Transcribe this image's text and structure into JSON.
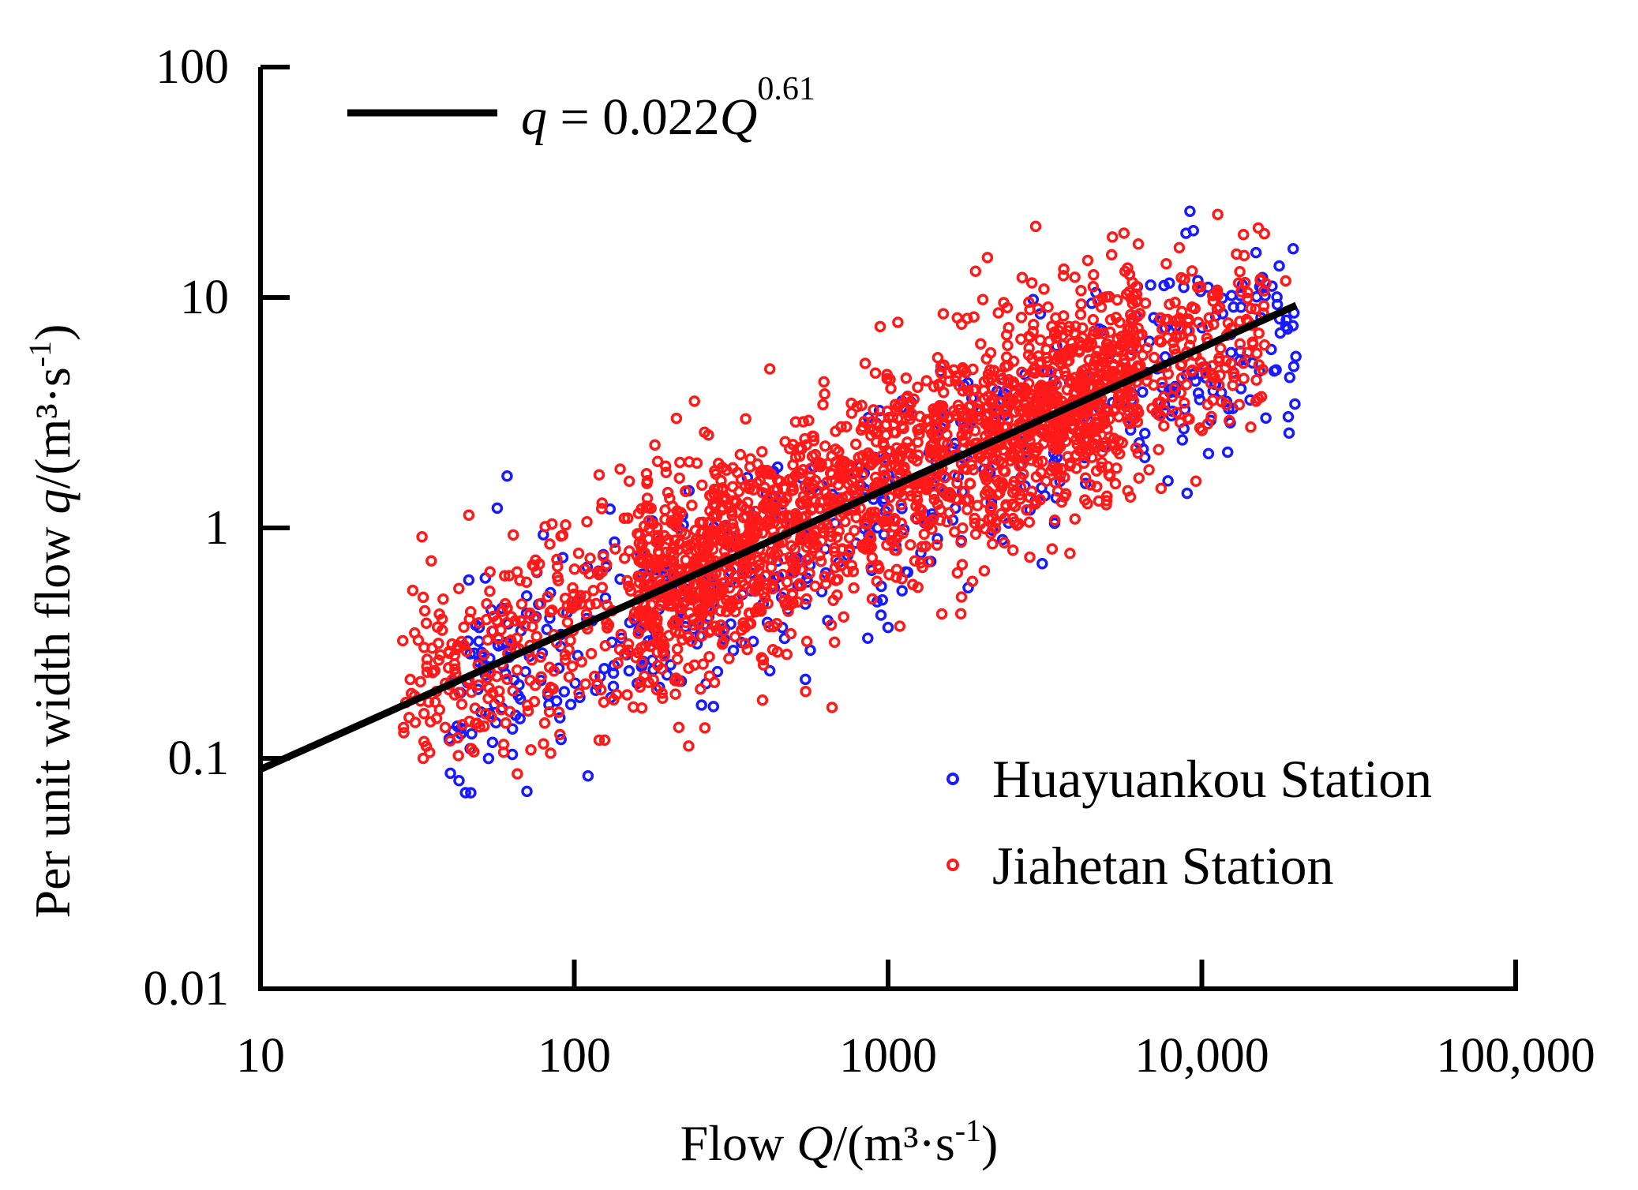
{
  "chart_data": {
    "type": "scatter",
    "scale": {
      "x": "log",
      "y": "log"
    },
    "xlim": [
      10,
      100000
    ],
    "ylim": [
      0.01,
      100
    ],
    "x_ticks": [
      10,
      100,
      1000,
      10000,
      100000
    ],
    "y_ticks": [
      0.01,
      0.1,
      1,
      10,
      100
    ],
    "x_tick_labels": [
      "10",
      "100",
      "1000",
      "10,000",
      "100,000"
    ],
    "y_tick_labels": [
      "0.01",
      "0.1",
      "1",
      "10",
      "100"
    ],
    "xlabel": {
      "prefix": "Flow ",
      "var": "Q",
      "units": "/(m³·s",
      "exp": "-1",
      "close": ")"
    },
    "ylabel": {
      "prefix": "Per unit width flow ",
      "var": "q",
      "units": "/(m³·s",
      "exp": "-1",
      "close": ")"
    },
    "fit": {
      "label_var": "q",
      "label_eq": " = 0.022",
      "label_var2": "Q",
      "label_exp": "0.61",
      "coefficient": 0.022,
      "exponent": 0.61,
      "x_range": [
        10,
        20000
      ],
      "color": "#000000"
    },
    "legend_position": "lower-right",
    "series": [
      {
        "name": "Huayuankou Station",
        "color": "#1a1aff",
        "clouds": [
          {
            "n": 520,
            "x_log_range": [
              1.6,
              4.3
            ],
            "mean_offset": -0.06,
            "spread": 0.24,
            "seed": 11
          }
        ],
        "extra_points": [
          {
            "x": 8900,
            "y": 19
          },
          {
            "x": 9400,
            "y": 19.5
          },
          {
            "x": 17000,
            "y": 4.8
          },
          {
            "x": 16000,
            "y": 3.0
          },
          {
            "x": 7800,
            "y": 1.6
          },
          {
            "x": 10500,
            "y": 2.1
          },
          {
            "x": 1000,
            "y": 0.37
          },
          {
            "x": 1800,
            "y": 0.55
          },
          {
            "x": 420,
            "y": 0.24
          },
          {
            "x": 90,
            "y": 0.15
          },
          {
            "x": 40,
            "y": 0.12
          },
          {
            "x": 14500,
            "y": 5.2
          },
          {
            "x": 2900,
            "y": 9.8
          },
          {
            "x": 4600,
            "y": 10.5
          },
          {
            "x": 5200,
            "y": 3.5
          },
          {
            "x": 6500,
            "y": 2.2
          },
          {
            "x": 3100,
            "y": 0.7
          },
          {
            "x": 11000,
            "y": 4.2
          }
        ]
      },
      {
        "name": "Jiahetan Station",
        "color": "#ff1a1a",
        "clouds": [
          {
            "n": 1500,
            "x_log_range": [
              2.2,
              3.8
            ],
            "mean_offset": 0.03,
            "spread": 0.24,
            "seed": 23
          },
          {
            "n": 420,
            "x_log_range": [
              1.45,
              2.6
            ],
            "mean_offset": 0.03,
            "spread": 0.22,
            "seed": 37
          },
          {
            "n": 380,
            "x_log_range": [
              3.3,
              4.2
            ],
            "mean_offset": 0.0,
            "spread": 0.2,
            "seed": 53
          }
        ],
        "extra_points": [
          {
            "x": 33,
            "y": 0.1
          },
          {
            "x": 47,
            "y": 0.11
          },
          {
            "x": 120,
            "y": 0.12
          },
          {
            "x": 125,
            "y": 0.12
          },
          {
            "x": 210,
            "y": 0.19
          },
          {
            "x": 120,
            "y": 1.7
          },
          {
            "x": 140,
            "y": 1.8
          },
          {
            "x": 1900,
            "y": 13
          },
          {
            "x": 16000,
            "y": 11.5
          },
          {
            "x": 18500,
            "y": 11.8
          },
          {
            "x": 14000,
            "y": 10.5
          },
          {
            "x": 420,
            "y": 4.9
          },
          {
            "x": 30,
            "y": 0.22
          },
          {
            "x": 35,
            "y": 0.72
          },
          {
            "x": 31,
            "y": 0.35
          },
          {
            "x": 33,
            "y": 0.5
          },
          {
            "x": 60,
            "y": 0.62
          },
          {
            "x": 2500,
            "y": 0.8
          },
          {
            "x": 1500,
            "y": 8.5
          },
          {
            "x": 260,
            "y": 2.6
          }
        ]
      }
    ]
  }
}
